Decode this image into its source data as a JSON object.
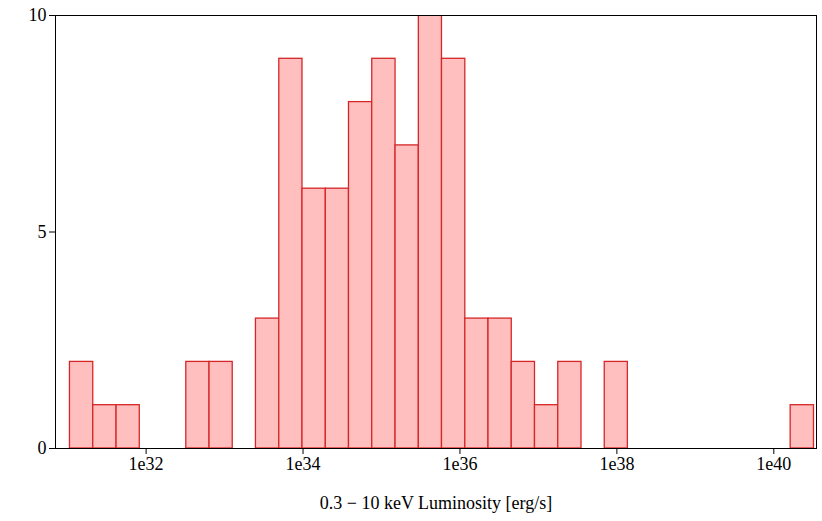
{
  "chart_data": {
    "type": "histogram",
    "x_label": "0.3 − 10 keV Luminosity [erg/s]",
    "bins": [
      1.07e+31,
      2.12e+31,
      4.2e+31,
      8.3e+31,
      1.64e+32,
      3.25e+32,
      6.43e+32,
      1.27e+33,
      2.51e+33,
      4.98e+33,
      9.84e+33,
      1.95e+34,
      3.85e+34,
      7.62e+34,
      1.51e+35,
      2.99e+35,
      5.9e+35,
      1.17e+36,
      2.31e+36,
      4.57e+36,
      9.04e+36,
      1.79e+37,
      3.54e+37,
      7e+37,
      1.38e+38,
      2.74e+38,
      5.42e+38,
      1.07e+39,
      2.12e+39,
      4.2e+39,
      8.3e+39,
      1.64e+40,
      3.25e+40
    ],
    "counts": [
      2,
      1,
      1,
      0,
      0,
      2,
      2,
      0,
      3,
      9,
      6,
      6,
      8,
      9,
      7,
      10,
      9,
      3,
      3,
      2,
      1,
      2,
      0,
      2,
      0,
      0,
      0,
      0,
      0,
      0,
      0,
      1
    ],
    "color": "#ffbfbf",
    "xlim": [
      7e+30,
      3.5e+40
    ],
    "ylim": [
      0,
      10
    ],
    "xticks": [
      {
        "value": 1e+32,
        "label": "1e32"
      },
      {
        "value": 1e+34,
        "label": "1e34"
      },
      {
        "value": 1e+36,
        "label": "1e36"
      },
      {
        "value": 1e+38,
        "label": "1e38"
      },
      {
        "value": 1e+40,
        "label": "1e40"
      }
    ],
    "yticks": [
      0,
      5,
      10
    ],
    "log": "x"
  }
}
